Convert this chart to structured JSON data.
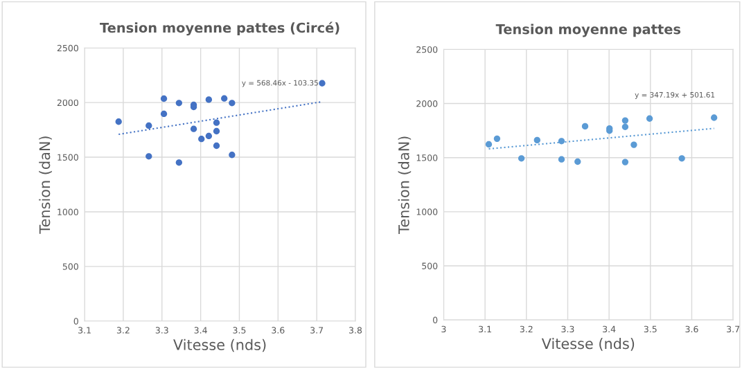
{
  "chart_data": [
    {
      "type": "scatter",
      "title": "Tension moyenne pattes (Circé)",
      "xlabel": "Vitesse (nds)",
      "ylabel": "Tension (daN)",
      "xlim": [
        3.1,
        3.8
      ],
      "xticks": [
        3.1,
        3.2,
        3.3,
        3.4,
        3.5,
        3.6,
        3.7,
        3.8
      ],
      "ylim": [
        0,
        2500
      ],
      "yticks": [
        0,
        500,
        1000,
        1500,
        2000,
        2500
      ],
      "grid": true,
      "annotations": [
        "y = 568.46x - 103.35"
      ],
      "series": [
        {
          "marker": "circle",
          "color": "#4472c4",
          "x": [
            3.188,
            3.266,
            3.266,
            3.305,
            3.305,
            3.344,
            3.344,
            3.382,
            3.382,
            3.382,
            3.402,
            3.421,
            3.421,
            3.441,
            3.441,
            3.441,
            3.461,
            3.481,
            3.481,
            3.714
          ],
          "values": [
            1825,
            1789,
            1508,
            2036,
            1897,
            1996,
            1451,
            1979,
            1960,
            1759,
            1667,
            2027,
            1694,
            1816,
            1738,
            1605,
            2038,
            1996,
            1521,
            2177
          ]
        },
        {
          "type": "line",
          "color": "#4472c4",
          "line_style": "dotted",
          "x": [
            3.188,
            3.714
          ],
          "values": [
            1709,
            2008
          ]
        }
      ]
    },
    {
      "type": "scatter",
      "title": "Tension moyenne pattes",
      "xlabel": "Vitesse (nds)",
      "ylabel": "Tension (daN)",
      "xlim": [
        3,
        3.7
      ],
      "xticks": [
        3,
        3.1,
        3.2,
        3.3,
        3.4,
        3.5,
        3.6,
        3.7
      ],
      "ylim": [
        0,
        2500
      ],
      "yticks": [
        0,
        500,
        1000,
        1500,
        2000,
        2500
      ],
      "grid": true,
      "annotations": [
        "y = 347.19x + 501.61"
      ],
      "series": [
        {
          "marker": "circle",
          "color": "#5b9bd5",
          "x": [
            3.109,
            3.129,
            3.188,
            3.226,
            3.285,
            3.285,
            3.324,
            3.342,
            3.401,
            3.401,
            3.439,
            3.439,
            3.439,
            3.46,
            3.498,
            3.576,
            3.654
          ],
          "values": [
            1623,
            1675,
            1493,
            1662,
            1653,
            1484,
            1463,
            1790,
            1769,
            1749,
            1843,
            1784,
            1459,
            1619,
            1861,
            1493,
            1869
          ]
        },
        {
          "type": "line",
          "color": "#5b9bd5",
          "line_style": "dotted",
          "x": [
            3.109,
            3.654
          ],
          "values": [
            1581,
            1770
          ]
        }
      ]
    }
  ]
}
